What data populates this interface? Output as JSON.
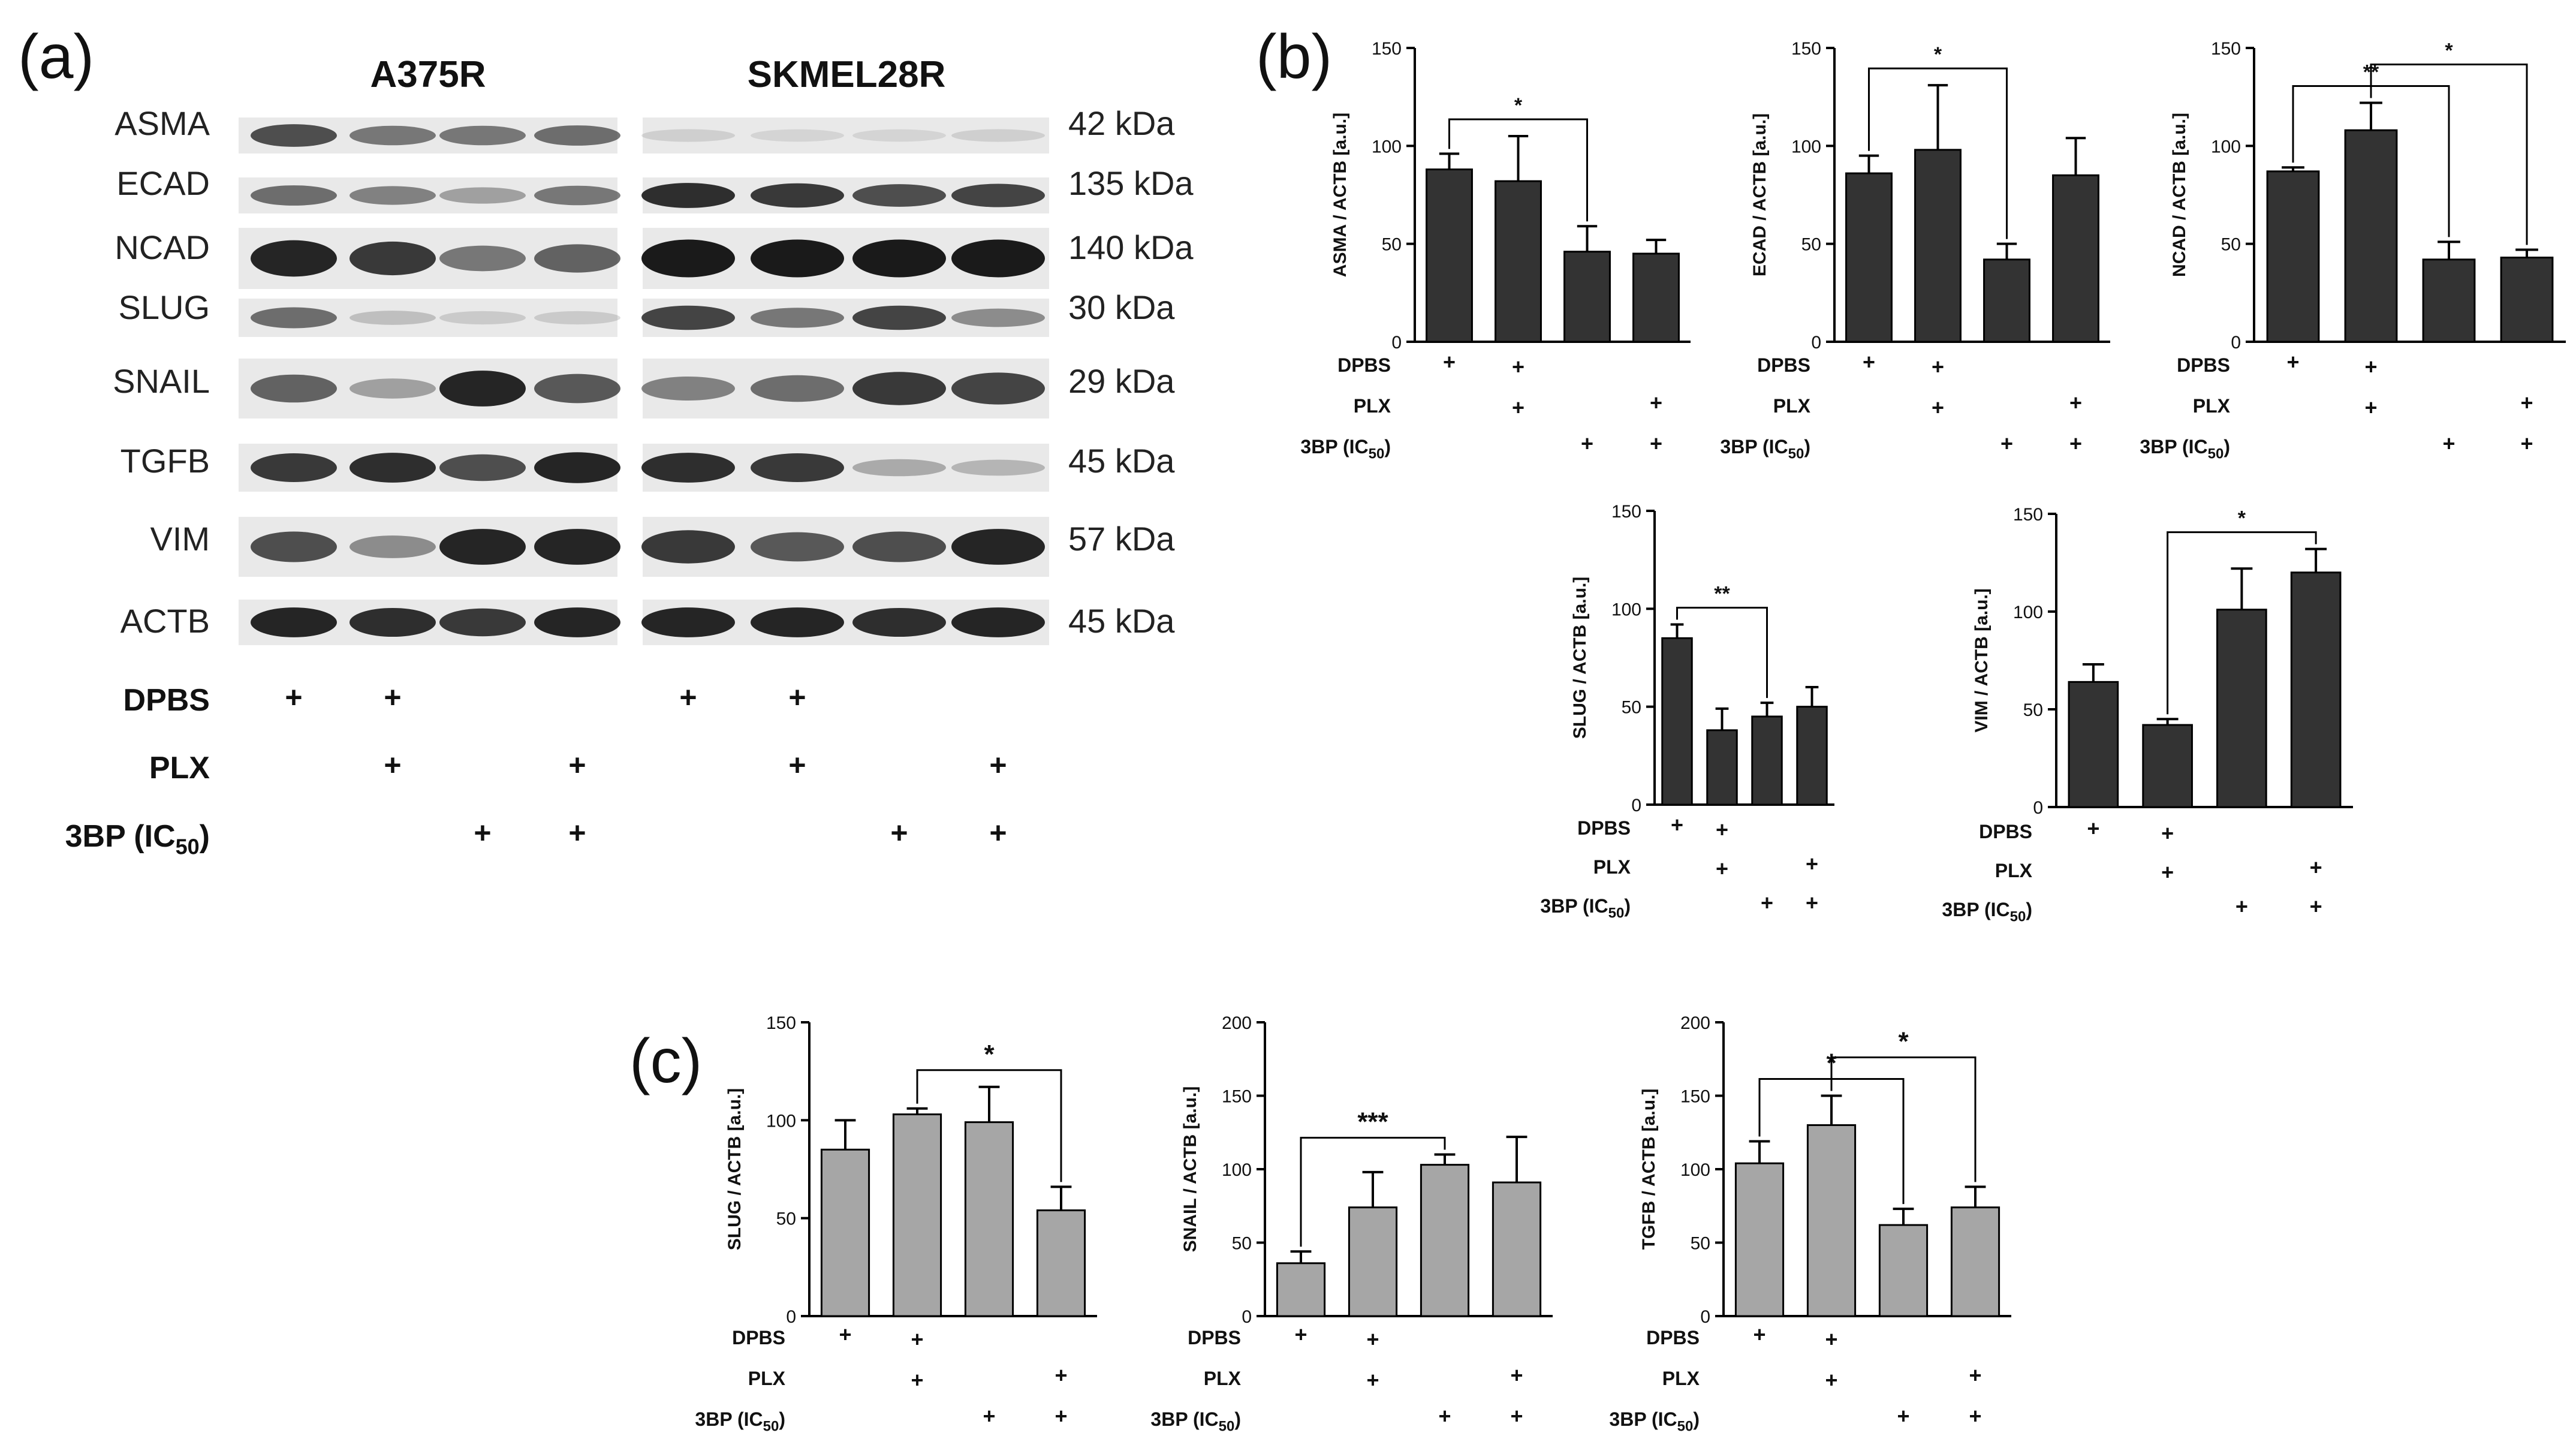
{
  "panel_labels": {
    "a": "(a)",
    "b": "(b)",
    "c": "(c)"
  },
  "treatment_labels": {
    "dpbs": "DPBS",
    "plx": "PLX",
    "bp_prefix": "3BP (IC",
    "bp_sub": "50",
    "bp_suffix": ")"
  },
  "treatment_matrix": {
    "dpbs": [
      true,
      true,
      false,
      false
    ],
    "plx": [
      false,
      true,
      false,
      true
    ],
    "bp": [
      false,
      false,
      true,
      true
    ]
  },
  "western_blot": {
    "cell_lines": [
      "A375R",
      "SKMEL28R"
    ],
    "rows": [
      {
        "protein": "ASMA",
        "kda": "42 kDa",
        "a375r": [
          0.75,
          0.55,
          0.55,
          0.6
        ],
        "skmel28r": [
          0.12,
          0.1,
          0.1,
          0.12
        ]
      },
      {
        "protein": "ECAD",
        "kda": "135 kDa",
        "a375r": [
          0.6,
          0.5,
          0.35,
          0.55
        ],
        "skmel28r": [
          0.9,
          0.85,
          0.75,
          0.8
        ]
      },
      {
        "protein": "NCAD",
        "kda": "140 kDa",
        "a375r": [
          0.95,
          0.85,
          0.55,
          0.65
        ],
        "skmel28r": [
          1.0,
          1.0,
          1.0,
          1.0
        ]
      },
      {
        "protein": "SLUG",
        "kda": "30 kDa",
        "a375r": [
          0.6,
          0.2,
          0.15,
          0.15
        ],
        "skmel28r": [
          0.8,
          0.55,
          0.8,
          0.45
        ]
      },
      {
        "protein": "SNAIL",
        "kda": "29 kDa",
        "a375r": [
          0.65,
          0.35,
          0.95,
          0.7
        ],
        "skmel28r": [
          0.5,
          0.6,
          0.85,
          0.8
        ]
      },
      {
        "protein": "TGFB",
        "kda": "45 kDa",
        "a375r": [
          0.85,
          0.9,
          0.75,
          0.95
        ],
        "skmel28r": [
          0.9,
          0.85,
          0.3,
          0.25
        ]
      },
      {
        "protein": "VIM",
        "kda": "57 kDa",
        "a375r": [
          0.75,
          0.45,
          0.95,
          0.95
        ],
        "skmel28r": [
          0.85,
          0.7,
          0.75,
          0.95
        ]
      },
      {
        "protein": "ACTB",
        "kda": "45 kDa",
        "a375r": [
          0.95,
          0.9,
          0.85,
          0.95
        ],
        "skmel28r": [
          0.95,
          0.95,
          0.9,
          0.95
        ]
      }
    ]
  },
  "colors": {
    "bar_b": "#333333",
    "bar_c": "#a6a6a6",
    "band": "#1a1a1a",
    "membrane": "#e9e9e9",
    "axis": "#000000"
  },
  "chart_data": [
    {
      "panel": "b",
      "type": "bar",
      "ylabel": "ASMA / ACTB [a.u.]",
      "ylim": [
        0,
        150
      ],
      "yticks": [
        0,
        50,
        100,
        150
      ],
      "values": [
        88,
        82,
        46,
        45
      ],
      "errors": [
        8,
        23,
        13,
        7
      ],
      "significance": [
        {
          "from": 0,
          "to": 2,
          "label": "*"
        }
      ]
    },
    {
      "panel": "b",
      "type": "bar",
      "ylabel": "ECAD / ACTB [a.u.]",
      "ylim": [
        0,
        150
      ],
      "yticks": [
        0,
        50,
        100,
        150
      ],
      "values": [
        86,
        98,
        42,
        85
      ],
      "errors": [
        9,
        33,
        8,
        19
      ],
      "significance": [
        {
          "from": 0,
          "to": 2,
          "label": "*"
        }
      ]
    },
    {
      "panel": "b",
      "type": "bar",
      "ylabel": "NCAD / ACTB [a.u.]",
      "ylim": [
        0,
        150
      ],
      "yticks": [
        0,
        50,
        100,
        150
      ],
      "values": [
        87,
        108,
        42,
        43
      ],
      "errors": [
        2,
        14,
        9,
        4
      ],
      "significance": [
        {
          "from": 0,
          "to": 2,
          "label": "**"
        },
        {
          "from": 1,
          "to": 3,
          "label": "*"
        }
      ]
    },
    {
      "panel": "b",
      "type": "bar",
      "ylabel": "SLUG / ACTB [a.u.]",
      "ylim": [
        0,
        150
      ],
      "yticks": [
        0,
        50,
        100,
        150
      ],
      "values": [
        85,
        38,
        45,
        50
      ],
      "errors": [
        7,
        11,
        7,
        10
      ],
      "significance": [
        {
          "from": 0,
          "to": 2,
          "label": "**"
        }
      ]
    },
    {
      "panel": "b",
      "type": "bar",
      "ylabel": "VIM / ACTB [a.u.]",
      "ylim": [
        0,
        150
      ],
      "yticks": [
        0,
        50,
        100,
        150
      ],
      "values": [
        64,
        42,
        101,
        120
      ],
      "errors": [
        9,
        3,
        21,
        12
      ],
      "significance": [
        {
          "from": 1,
          "to": 3,
          "label": "*"
        }
      ]
    },
    {
      "panel": "c",
      "type": "bar",
      "ylabel": "SLUG / ACTB [a.u.]",
      "ylim": [
        0,
        150
      ],
      "yticks": [
        0,
        50,
        100,
        150
      ],
      "values": [
        85,
        103,
        99,
        54
      ],
      "errors": [
        15,
        3,
        18,
        12
      ],
      "significance": [
        {
          "from": 1,
          "to": 3,
          "label": "*"
        }
      ]
    },
    {
      "panel": "c",
      "type": "bar",
      "ylabel": "SNAIL / ACTB [a.u.]",
      "ylim": [
        0,
        200
      ],
      "yticks": [
        0,
        50,
        100,
        150,
        200
      ],
      "values": [
        36,
        74,
        103,
        91
      ],
      "errors": [
        8,
        24,
        7,
        31
      ],
      "significance": [
        {
          "from": 0,
          "to": 2,
          "label": "***"
        }
      ]
    },
    {
      "panel": "c",
      "type": "bar",
      "ylabel": "TGFB / ACTB [a.u.]",
      "ylim": [
        0,
        200
      ],
      "yticks": [
        0,
        50,
        100,
        150,
        200
      ],
      "values": [
        104,
        130,
        62,
        74
      ],
      "errors": [
        15,
        20,
        11,
        14
      ],
      "significance": [
        {
          "from": 0,
          "to": 2,
          "label": "*"
        },
        {
          "from": 1,
          "to": 3,
          "label": "*"
        }
      ]
    }
  ]
}
